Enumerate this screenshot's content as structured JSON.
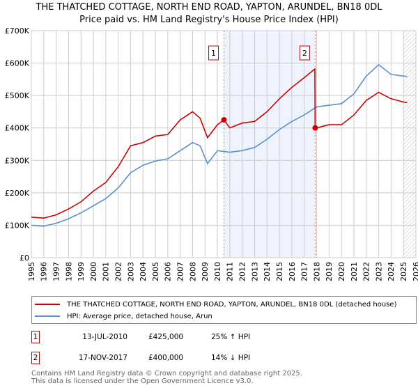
{
  "chart_data": {
    "type": "line",
    "title": "THE THATCHED COTTAGE, NORTH END ROAD, YAPTON, ARUNDEL, BN18 0DL",
    "subtitle": "Price paid vs. HM Land Registry's House Price Index (HPI)",
    "xlim": [
      1995,
      2026
    ],
    "ylim": [
      0,
      700000
    ],
    "grid": true,
    "x_ticks": [
      "1995",
      "1996",
      "1997",
      "1998",
      "1999",
      "2000",
      "2001",
      "2002",
      "2003",
      "2004",
      "2005",
      "2006",
      "2007",
      "2008",
      "2009",
      "2010",
      "2011",
      "2012",
      "2013",
      "2014",
      "2015",
      "2016",
      "2017",
      "2018",
      "2019",
      "2020",
      "2021",
      "2022",
      "2023",
      "2024",
      "2025",
      "2026"
    ],
    "y_ticks": [
      {
        "value": 0,
        "label": "£0"
      },
      {
        "value": 100000,
        "label": "£100K"
      },
      {
        "value": 200000,
        "label": "£200K"
      },
      {
        "value": 300000,
        "label": "£300K"
      },
      {
        "value": 400000,
        "label": "£400K"
      },
      {
        "value": 500000,
        "label": "£500K"
      },
      {
        "value": 600000,
        "label": "£600K"
      },
      {
        "value": 700000,
        "label": "£700K"
      }
    ],
    "shaded_range": [
      2010.53,
      2017.88
    ],
    "hatched_from": 2025.0,
    "series": [
      {
        "name": "THE THATCHED COTTAGE, NORTH END ROAD, YAPTON, ARUNDEL, BN18 0DL (detached house)",
        "color": "#cc0000",
        "x": [
          1995,
          1996,
          1997,
          1998,
          1999,
          2000,
          2001,
          2002,
          2003,
          2004,
          2005,
          2006,
          2007,
          2008,
          2008.6,
          2009.2,
          2010,
          2010.53,
          2011,
          2012,
          2013,
          2014,
          2015,
          2016,
          2017,
          2017.85,
          2017.88,
          2018,
          2019,
          2020,
          2021,
          2022,
          2023,
          2024,
          2025,
          2025.3
        ],
        "y": [
          125000,
          122000,
          132000,
          150000,
          172000,
          205000,
          232000,
          280000,
          345000,
          355000,
          375000,
          380000,
          425000,
          450000,
          430000,
          370000,
          410000,
          425000,
          400000,
          415000,
          420000,
          450000,
          490000,
          525000,
          555000,
          582000,
          400000,
          400000,
          410000,
          410000,
          440000,
          485000,
          510000,
          490000,
          480000,
          478000
        ]
      },
      {
        "name": "HPI: Average price, detached house, Arun",
        "color": "#5b8fd0",
        "x": [
          1995,
          1996,
          1997,
          1998,
          1999,
          2000,
          2001,
          2002,
          2003,
          2004,
          2005,
          2006,
          2007,
          2008,
          2008.6,
          2009.2,
          2010,
          2011,
          2012,
          2013,
          2014,
          2015,
          2016,
          2017,
          2018,
          2019,
          2020,
          2021,
          2022,
          2023,
          2024,
          2025,
          2025.3
        ],
        "y": [
          100000,
          97000,
          106000,
          120000,
          138000,
          160000,
          182000,
          215000,
          262000,
          285000,
          298000,
          305000,
          330000,
          355000,
          345000,
          290000,
          330000,
          325000,
          330000,
          340000,
          365000,
          395000,
          420000,
          440000,
          465000,
          470000,
          475000,
          505000,
          560000,
          595000,
          565000,
          560000,
          558000
        ]
      }
    ],
    "annotations": [
      {
        "label": "1",
        "x": 2010.53,
        "y": 425000
      },
      {
        "label": "2",
        "x": 2017.88,
        "y": 400000
      }
    ]
  },
  "legend": [
    {
      "label": "THE THATCHED COTTAGE, NORTH END ROAD, YAPTON, ARUNDEL, BN18 0DL (detached house)",
      "color": "#cc0000"
    },
    {
      "label": "HPI: Average price, detached house, Arun",
      "color": "#5b8fd0"
    }
  ],
  "transactions": [
    {
      "num": "1",
      "date": "13-JUL-2010",
      "price": "£425,000",
      "hpi": "25% ↑ HPI"
    },
    {
      "num": "2",
      "date": "17-NOV-2017",
      "price": "£400,000",
      "hpi": "14% ↓ HPI"
    }
  ],
  "footer": {
    "line1": "Contains HM Land Registry data © Crown copyright and database right 2025.",
    "line2": "This data is licensed under the Open Government Licence v3.0."
  }
}
